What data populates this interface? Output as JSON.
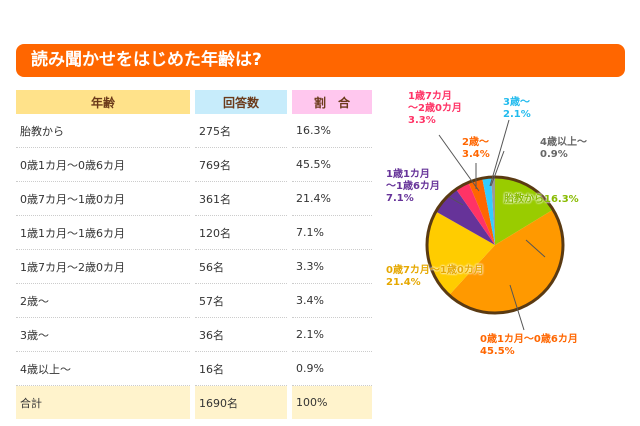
{
  "title": "読み聞かせをはじめた年齢は?",
  "table": {
    "headers": [
      "年齢",
      "回答数",
      "割　合"
    ],
    "header_colors": [
      "#ffe28a",
      "#c7ecfb",
      "#ffc7ee"
    ],
    "rows": [
      [
        "胎教から",
        "275名",
        "16.3%"
      ],
      [
        "0歳1カ月～0歳6カ月",
        "769名",
        "45.5%"
      ],
      [
        "0歳7カ月～1歳0カ月",
        "361名",
        "21.4%"
      ],
      [
        "1歳1カ月～1歳6カ月",
        "120名",
        "7.1%"
      ],
      [
        "1歳7カ月～2歳0カ月",
        "56名",
        "3.3%"
      ],
      [
        "2歳～",
        "57名",
        "3.4%"
      ],
      [
        "3歳～",
        "36名",
        "2.1%"
      ],
      [
        "4歳以上～",
        "16名",
        "0.9%"
      ],
      [
        "合計",
        "1690名",
        "100%"
      ]
    ]
  },
  "chart_data": {
    "type": "pie",
    "slices": [
      {
        "label": "胎教から",
        "value": 16.3,
        "color": "#99cc00",
        "text": "胎教から16.3%"
      },
      {
        "label": "0歳1カ月～0歳6カ月",
        "value": 45.5,
        "color": "#ff9900",
        "text": "0歳1カ月～0歳6カ月\n45.5%"
      },
      {
        "label": "0歳7カ月～1歳0カ月",
        "value": 21.4,
        "color": "#ffcc00",
        "text": "0歳7カ月～1歳0カ月\n21.4%"
      },
      {
        "label": "1歳1カ月～1歳6カ月",
        "value": 7.1,
        "color": "#663399",
        "text": "1歳1カ月\n～1歳6カ月\n7.1%"
      },
      {
        "label": "1歳7カ月～2歳0カ月",
        "value": 3.3,
        "color": "#ff3366",
        "text": "1歳7カ月\n～2歳0カ月\n3.3%"
      },
      {
        "label": "2歳～",
        "value": 3.4,
        "color": "#ff6600",
        "text": "2歳～\n3.4%"
      },
      {
        "label": "3歳～",
        "value": 2.1,
        "color": "#33ccff",
        "text": "3歳～\n2.1%"
      },
      {
        "label": "4歳以上～",
        "value": 0.9,
        "color": "#999999",
        "text": "4歳以上～\n0.9%"
      }
    ]
  }
}
